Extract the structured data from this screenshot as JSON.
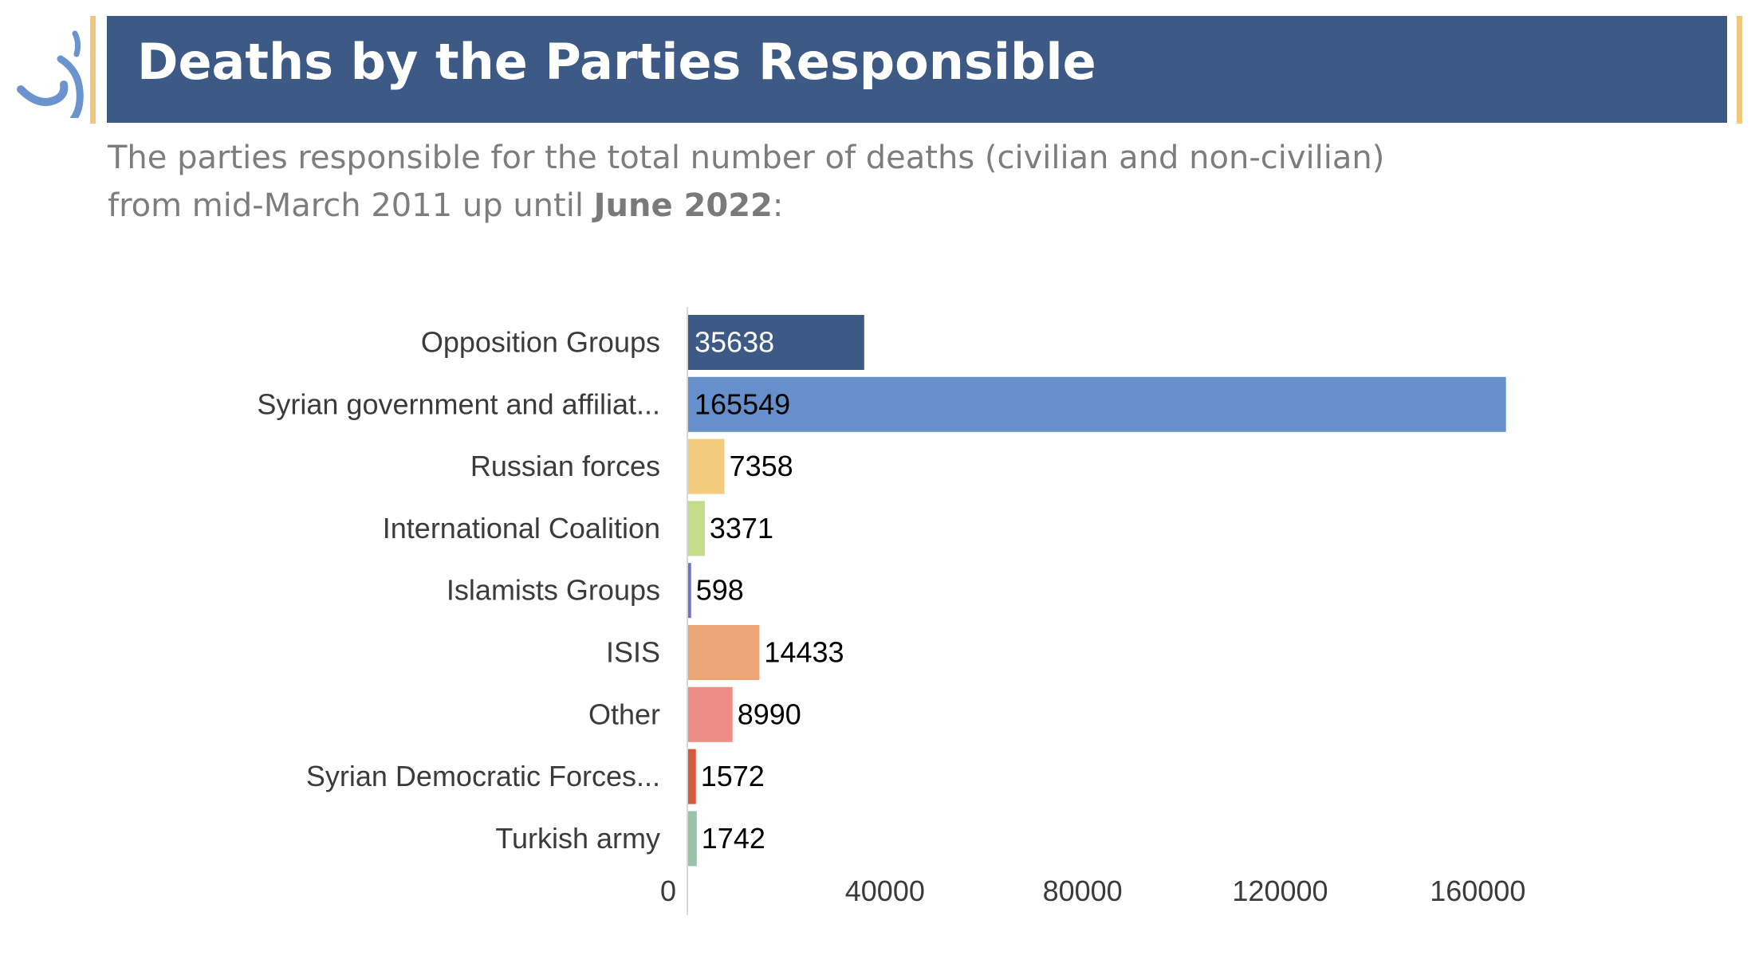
{
  "header": {
    "title": "Deaths by the Parties Responsible",
    "subtitle_line1": "The parties responsible for the total number of deaths (civilian and non-civilian)",
    "subtitle_line2_prefix": "from mid-March 2011 up until ",
    "subtitle_line2_emphasis": "June 2022",
    "subtitle_line2_suffix": ":"
  },
  "colors": {
    "banner": "#3d5a87",
    "accent": "#f3c77b",
    "logo": "#6a93cf"
  },
  "icons": {
    "logo": "organization-logo-icon"
  },
  "chart_data": {
    "type": "bar",
    "orientation": "horizontal",
    "categories": [
      "Opposition Groups",
      "Syrian government and affiliat...",
      "Russian forces",
      "International Coalition",
      "Islamists Groups",
      "ISIS",
      "Other",
      "Syrian Democratic Forces...",
      "Turkish army"
    ],
    "values": [
      35638,
      165549,
      7358,
      3371,
      598,
      14433,
      8990,
      1572,
      1742
    ],
    "bar_colors": [
      "#3d5a87",
      "#6590cb",
      "#f3cd7d",
      "#c2dc8a",
      "#6f6fd0",
      "#eca577",
      "#ec8e85",
      "#d6573a",
      "#97c4a8"
    ],
    "label_inside": [
      true,
      true,
      false,
      false,
      false,
      false,
      false,
      false,
      false
    ],
    "label_inside_color": [
      "white",
      "black"
    ],
    "x_ticks": [
      0,
      40000,
      80000,
      120000,
      160000
    ],
    "xlim": [
      0,
      184000
    ],
    "title": "",
    "xlabel": "",
    "ylabel": "",
    "grid": false,
    "legend": "none"
  }
}
